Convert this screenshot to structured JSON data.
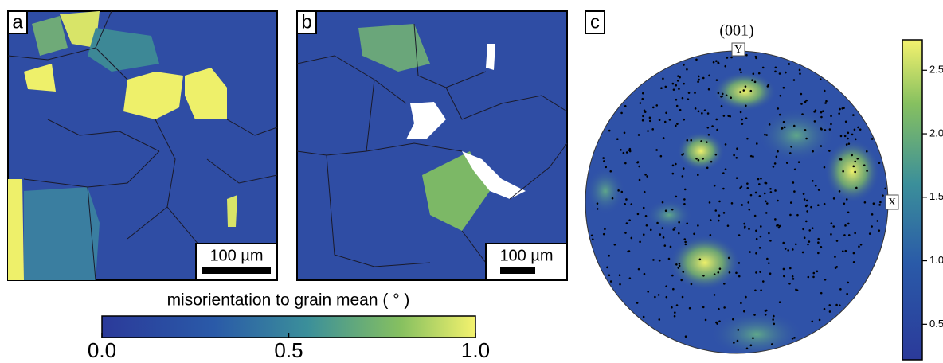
{
  "panels": [
    {
      "label": "a",
      "scale_bar": "100 µm"
    },
    {
      "label": "b",
      "scale_bar": "100 µm"
    },
    {
      "label": "c",
      "title": "(001)",
      "axis_labels": [
        "Y",
        "X"
      ]
    }
  ],
  "colorbar_main": {
    "label": "misorientation to grain mean ( ° )",
    "range": [
      0,
      1
    ],
    "ticks": [
      {
        "value": 0,
        "label": "0.0"
      },
      {
        "value": 0.5,
        "label": "0.5"
      },
      {
        "value": 1,
        "label": "1.0"
      }
    ]
  },
  "colorbar_pole": {
    "range": [
      0.22,
      2.74
    ],
    "ticks": [
      0.5,
      {
        "value": 1,
        "label": "1.0"
      },
      1.5,
      {
        "value": 2,
        "label": "2.0"
      },
      2.5
    ]
  }
}
